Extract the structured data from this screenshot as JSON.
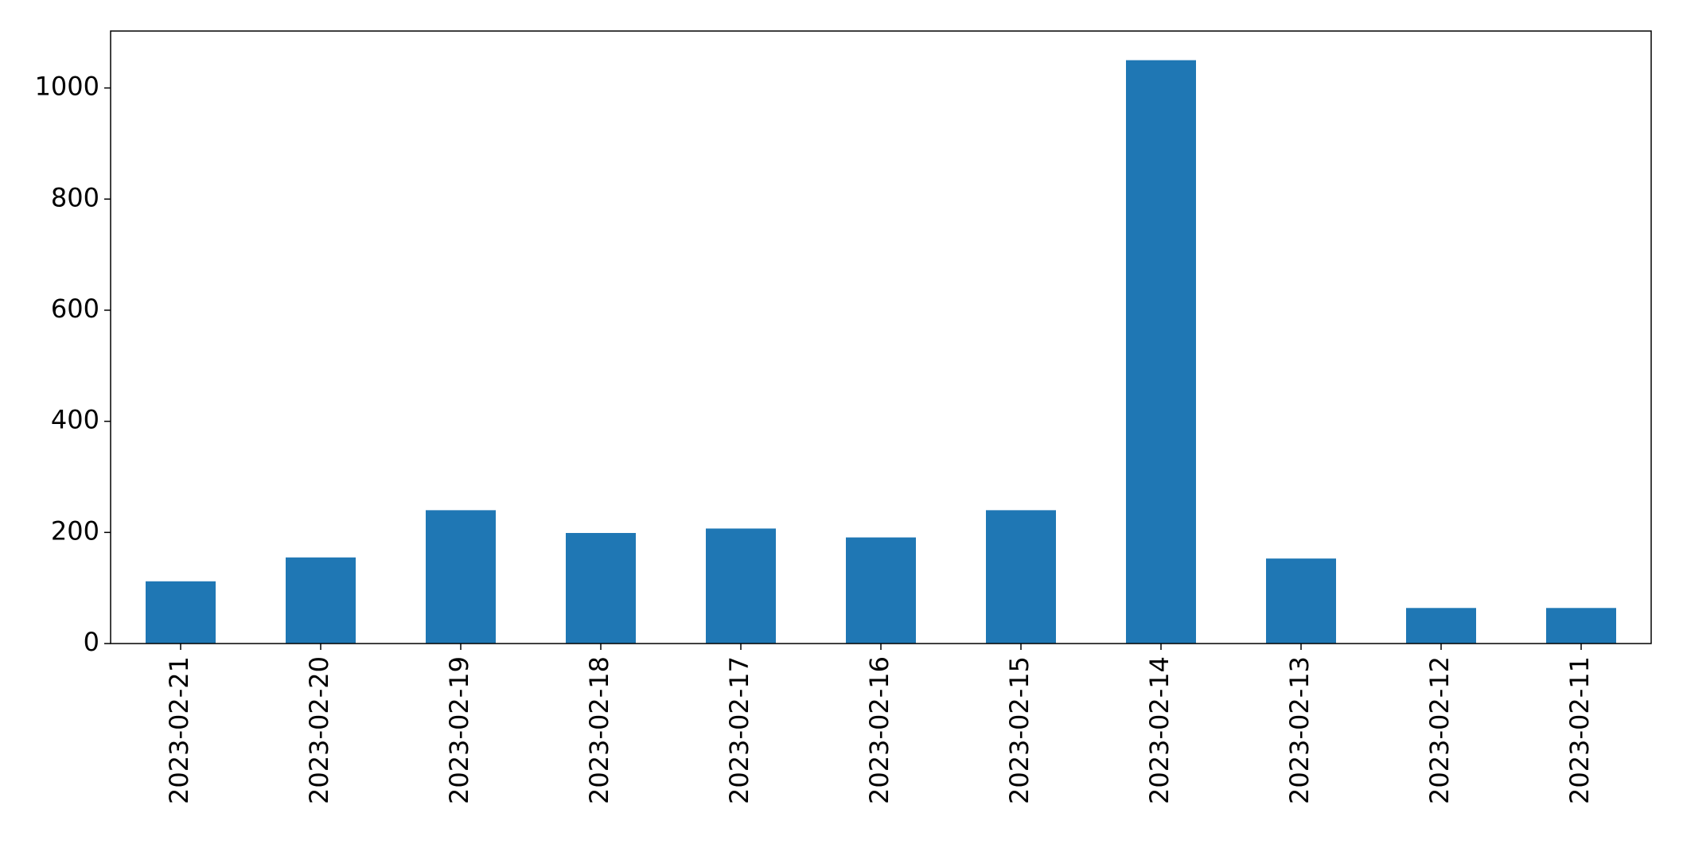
{
  "chart_data": {
    "type": "bar",
    "categories": [
      "2023-02-21",
      "2023-02-20",
      "2023-02-19",
      "2023-02-18",
      "2023-02-17",
      "2023-02-16",
      "2023-02-15",
      "2023-02-14",
      "2023-02-13",
      "2023-02-12",
      "2023-02-11"
    ],
    "values": [
      112,
      155,
      240,
      199,
      207,
      191,
      240,
      1050,
      153,
      64,
      64
    ],
    "color": "#1f77b4",
    "ylim": [
      0,
      1102.5
    ],
    "yticks": [
      0,
      200,
      400,
      600,
      800,
      1000
    ],
    "grid": false
  }
}
